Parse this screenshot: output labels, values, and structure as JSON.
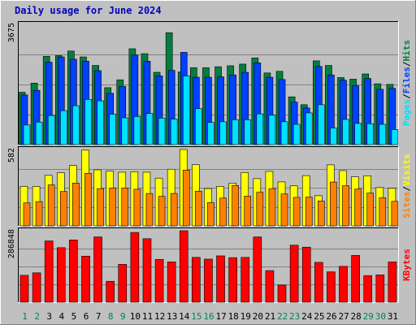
{
  "title": "Daily usage for June 2024",
  "colors": {
    "background": "#c0c0c0",
    "pages": "#00e0ff",
    "files": "#0040ff",
    "hits": "#008040",
    "sites": "#ff8000",
    "visits": "#ffff00",
    "kbytes": "#ff0000",
    "weekend_label": "#00805c",
    "weekday_label": "#000000",
    "title": "#0000c0"
  },
  "chart_data": [
    {
      "type": "bar",
      "panel": "hits-files-pages",
      "ymax_label": "3675",
      "ylim": [
        0,
        3675
      ],
      "legend": [
        {
          "name": "Pages",
          "color": "#00e0ff"
        },
        {
          "name": "Files",
          "color": "#0040ff"
        },
        {
          "name": "Hits",
          "color": "#008040"
        }
      ],
      "categories": [
        "1",
        "2",
        "3",
        "4",
        "5",
        "6",
        "7",
        "8",
        "9",
        "10",
        "11",
        "12",
        "13",
        "14",
        "15",
        "16",
        "17",
        "18",
        "19",
        "20",
        "21",
        "22",
        "23",
        "24",
        "25",
        "26",
        "27",
        "28",
        "29",
        "30",
        "31"
      ],
      "series": [
        {
          "name": "Hits",
          "values": [
            1600,
            1880,
            2700,
            2720,
            2860,
            2680,
            2420,
            1740,
            1980,
            2930,
            2780,
            2210,
            3420,
            2220,
            2350,
            2350,
            2380,
            2410,
            2460,
            2650,
            2190,
            2240,
            1460,
            1220,
            2560,
            2420,
            2050,
            2000,
            2160,
            1860,
            1840
          ]
        },
        {
          "name": "Files",
          "values": [
            1520,
            1660,
            2520,
            2680,
            2610,
            2550,
            2260,
            1570,
            1780,
            2740,
            2550,
            2100,
            2270,
            2820,
            2060,
            2060,
            2070,
            2130,
            2210,
            2500,
            2060,
            1990,
            1300,
            1120,
            2390,
            2130,
            1970,
            1800,
            2020,
            1690,
            1720
          ]
        },
        {
          "name": "Pages",
          "values": [
            600,
            690,
            890,
            1040,
            1190,
            1380,
            1340,
            930,
            820,
            860,
            950,
            810,
            780,
            2100,
            1100,
            680,
            700,
            760,
            760,
            940,
            900,
            700,
            620,
            970,
            1220,
            510,
            770,
            650,
            640,
            620,
            460
          ]
        }
      ]
    },
    {
      "type": "bar",
      "panel": "visits-sites",
      "ymax_label": "582",
      "ylim": [
        0,
        582
      ],
      "legend": [
        {
          "name": "Sites",
          "color": "#ff8000"
        },
        {
          "name": "Visits",
          "color": "#ffff00"
        }
      ],
      "categories": [
        "1",
        "2",
        "3",
        "4",
        "5",
        "6",
        "7",
        "8",
        "9",
        "10",
        "11",
        "12",
        "13",
        "14",
        "15",
        "16",
        "17",
        "18",
        "19",
        "20",
        "21",
        "22",
        "23",
        "24",
        "25",
        "26",
        "27",
        "28",
        "29",
        "30",
        "31"
      ],
      "series": [
        {
          "name": "Visits",
          "values": [
            300,
            300,
            385,
            405,
            460,
            577,
            427,
            417,
            409,
            413,
            409,
            364,
            432,
            582,
            466,
            284,
            301,
            326,
            407,
            360,
            415,
            335,
            305,
            383,
            230,
            465,
            421,
            374,
            382,
            292,
            286
          ]
        },
        {
          "name": "Sites",
          "values": [
            175,
            185,
            312,
            262,
            326,
            401,
            284,
            289,
            289,
            279,
            247,
            225,
            247,
            425,
            264,
            178,
            212,
            308,
            227,
            256,
            284,
            243,
            217,
            219,
            190,
            334,
            306,
            280,
            250,
            214,
            187
          ]
        }
      ]
    },
    {
      "type": "bar",
      "panel": "kbytes",
      "ymax_label": "286848",
      "ylim": [
        0,
        286848
      ],
      "legend": [
        {
          "name": "KBytes",
          "color": "#ff0000"
        }
      ],
      "categories": [
        "1",
        "2",
        "3",
        "4",
        "5",
        "6",
        "7",
        "8",
        "9",
        "10",
        "11",
        "12",
        "13",
        "14",
        "15",
        "16",
        "17",
        "18",
        "19",
        "20",
        "21",
        "22",
        "23",
        "24",
        "25",
        "26",
        "27",
        "28",
        "29",
        "30",
        "31"
      ],
      "series": [
        {
          "name": "KBytes",
          "values": [
            108000,
            118000,
            246000,
            219000,
            250000,
            185000,
            262000,
            84000,
            152000,
            280000,
            255000,
            172000,
            162000,
            286848,
            180000,
            173000,
            186000,
            179000,
            180000,
            262000,
            127000,
            69000,
            229000,
            221000,
            160000,
            122000,
            144000,
            188000,
            107000,
            110000,
            162000
          ]
        }
      ]
    }
  ],
  "x_labels": [
    {
      "text": "1",
      "weekend": true
    },
    {
      "text": "2",
      "weekend": true
    },
    {
      "text": "3",
      "weekend": false
    },
    {
      "text": "4",
      "weekend": false
    },
    {
      "text": "5",
      "weekend": false
    },
    {
      "text": "6",
      "weekend": false
    },
    {
      "text": "7",
      "weekend": false
    },
    {
      "text": "8",
      "weekend": true
    },
    {
      "text": "9",
      "weekend": true
    },
    {
      "text": "10",
      "weekend": false
    },
    {
      "text": "11",
      "weekend": false
    },
    {
      "text": "12",
      "weekend": false
    },
    {
      "text": "13",
      "weekend": false
    },
    {
      "text": "14",
      "weekend": false
    },
    {
      "text": "15",
      "weekend": true
    },
    {
      "text": "16",
      "weekend": true
    },
    {
      "text": "17",
      "weekend": false
    },
    {
      "text": "18",
      "weekend": false
    },
    {
      "text": "19",
      "weekend": false
    },
    {
      "text": "20",
      "weekend": false
    },
    {
      "text": "21",
      "weekend": false
    },
    {
      "text": "22",
      "weekend": true
    },
    {
      "text": "23",
      "weekend": true
    },
    {
      "text": "24",
      "weekend": false
    },
    {
      "text": "25",
      "weekend": false
    },
    {
      "text": "26",
      "weekend": false
    },
    {
      "text": "27",
      "weekend": false
    },
    {
      "text": "28",
      "weekend": false
    },
    {
      "text": "29",
      "weekend": true
    },
    {
      "text": "30",
      "weekend": true
    },
    {
      "text": "31",
      "weekend": false
    }
  ]
}
